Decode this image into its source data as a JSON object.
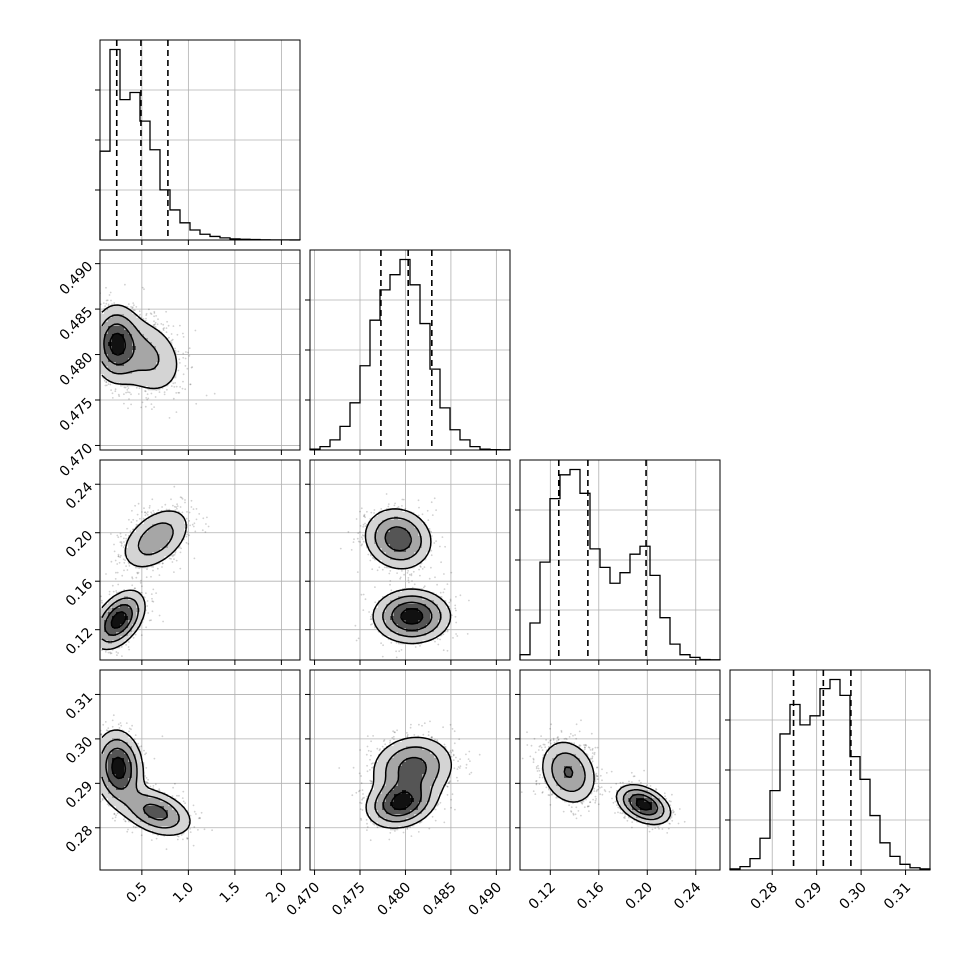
{
  "colors": {
    "points": "#000000",
    "histogram": "#000000",
    "grid": "#b0b0b0",
    "contour_fill_levels": [
      "#f2f2f2",
      "#d4d4d4",
      "#a6a6a6",
      "#555555",
      "#111111"
    ]
  },
  "chart_data": {
    "type": "corner",
    "grid": true,
    "parameters": [
      {
        "id": "p1",
        "range": [
          0.05,
          2.2
        ],
        "ticks": [
          0.5,
          1.0,
          1.5,
          2.0
        ],
        "tick_labels": [
          "0.5",
          "1.0",
          "1.5",
          "2.0"
        ],
        "quantiles": [
          0.23,
          0.49,
          0.78
        ],
        "histogram": {
          "edges": [
            0.05,
            0.1575,
            0.265,
            0.3725,
            0.48,
            0.5875,
            0.695,
            0.8025,
            0.91,
            1.0175,
            1.125,
            1.2325,
            1.34,
            1.4475,
            1.555,
            1.6625,
            1.77,
            1.8775,
            1.985,
            2.0925,
            2.2
          ],
          "counts": [
            62,
            133,
            98,
            103,
            83,
            63,
            35,
            21,
            12,
            7,
            4,
            2.5,
            1.5,
            0.8,
            0.5,
            0.3,
            0.2,
            0.1,
            0.1,
            0.05
          ]
        }
      },
      {
        "id": "p2",
        "range": [
          0.4695,
          0.4915
        ],
        "ticks": [
          0.47,
          0.475,
          0.48,
          0.485,
          0.49
        ],
        "tick_labels": [
          "0.470",
          "0.475",
          "0.480",
          "0.485",
          "0.490"
        ],
        "quantiles": [
          0.4773,
          0.4803,
          0.4829
        ],
        "histogram": {
          "edges": [
            0.4695,
            0.4706,
            0.4717,
            0.4728,
            0.4739,
            0.475,
            0.4761,
            0.4772,
            0.4783,
            0.4794,
            0.4805,
            0.4816,
            0.4827,
            0.4838,
            0.4849,
            0.486,
            0.4871,
            0.4882,
            0.4893,
            0.4904,
            0.4915
          ],
          "counts": [
            0.5,
            2,
            6,
            14,
            28,
            50,
            77,
            95,
            104,
            113,
            98,
            75,
            48,
            25,
            12,
            6,
            2,
            0.5,
            0.2,
            0.1
          ]
        }
      },
      {
        "id": "p3",
        "range": [
          0.095,
          0.26
        ],
        "ticks": [
          0.12,
          0.16,
          0.2,
          0.24
        ],
        "tick_labels": [
          "0.12",
          "0.16",
          "0.20",
          "0.24"
        ],
        "quantiles": [
          0.127,
          0.151,
          0.199
        ],
        "histogram": {
          "edges": [
            0.095,
            0.10325,
            0.1115,
            0.11975,
            0.128,
            0.13625,
            0.1445,
            0.15275,
            0.161,
            0.16925,
            0.1775,
            0.18575,
            0.194,
            0.20225,
            0.2105,
            0.21875,
            0.227,
            0.23525,
            0.2435,
            0.25175,
            0.26
          ],
          "counts": [
            2,
            14,
            37,
            61,
            70,
            72,
            63,
            42,
            35,
            29,
            33,
            40,
            43,
            32,
            16,
            6,
            2,
            1,
            0.2,
            0.1
          ]
        }
      },
      {
        "id": "p4",
        "range": [
          0.2705,
          0.3155
        ],
        "ticks": [
          0.28,
          0.29,
          0.3,
          0.31
        ],
        "tick_labels": [
          "0.28",
          "0.29",
          "0.30",
          "0.31"
        ],
        "quantiles": [
          0.2848,
          0.2915,
          0.2977
        ],
        "histogram": {
          "edges": [
            0.2705,
            0.27275,
            0.275,
            0.27725,
            0.2795,
            0.28175,
            0.284,
            0.28625,
            0.2885,
            0.29075,
            0.293,
            0.29525,
            0.2975,
            0.29975,
            0.302,
            0.30425,
            0.3065,
            0.30875,
            0.311,
            0.31325,
            0.3155
          ],
          "counts": [
            0.5,
            1.5,
            5,
            14,
            35,
            60,
            73,
            64,
            68,
            80,
            84,
            77,
            50,
            40,
            24,
            12,
            6,
            2.5,
            1,
            0.5
          ]
        }
      }
    ],
    "pairs": [
      {
        "id": "p2-vs-p1",
        "x_param": "p1",
        "y_param": "p2",
        "components": [
          {
            "x": 0.22,
            "y": 0.4812,
            "sx": 0.13,
            "sy": 0.0021,
            "rho": 0.0,
            "w": 0.55
          },
          {
            "x": 0.55,
            "y": 0.4798,
            "sx": 0.22,
            "sy": 0.0024,
            "rho": -0.25,
            "w": 0.45
          }
        ]
      },
      {
        "id": "p3-vs-p1",
        "x_param": "p1",
        "y_param": "p3",
        "components": [
          {
            "x": 0.25,
            "y": 0.128,
            "sx": 0.14,
            "sy": 0.012,
            "rho": 0.45,
            "w": 0.55
          },
          {
            "x": 0.65,
            "y": 0.195,
            "sx": 0.2,
            "sy": 0.014,
            "rho": 0.45,
            "w": 0.45
          }
        ]
      },
      {
        "id": "p4-vs-p1",
        "x_param": "p1",
        "y_param": "p4",
        "components": [
          {
            "x": 0.25,
            "y": 0.2935,
            "sx": 0.13,
            "sy": 0.0042,
            "rho": -0.1,
            "w": 0.6
          },
          {
            "x": 0.65,
            "y": 0.2835,
            "sx": 0.2,
            "sy": 0.0028,
            "rho": -0.4,
            "w": 0.4
          }
        ]
      },
      {
        "id": "p3-vs-p2",
        "x_param": "p2",
        "y_param": "p3",
        "components": [
          {
            "x": 0.4807,
            "y": 0.131,
            "sx": 0.0021,
            "sy": 0.011,
            "rho": 0.0,
            "w": 0.55
          },
          {
            "x": 0.4792,
            "y": 0.195,
            "sx": 0.0019,
            "sy": 0.013,
            "rho": -0.1,
            "w": 0.45
          }
        ]
      },
      {
        "id": "p4-vs-p2",
        "x_param": "p2",
        "y_param": "p4",
        "components": [
          {
            "x": 0.4795,
            "y": 0.2855,
            "sx": 0.0019,
            "sy": 0.0028,
            "rho": 0.2,
            "w": 0.45
          },
          {
            "x": 0.4808,
            "y": 0.2935,
            "sx": 0.0023,
            "sy": 0.0037,
            "rho": 0.1,
            "w": 0.55
          }
        ]
      },
      {
        "id": "p4-vs-p3",
        "x_param": "p3",
        "y_param": "p4",
        "components": [
          {
            "x": 0.135,
            "y": 0.2925,
            "sx": 0.012,
            "sy": 0.0038,
            "rho": -0.2,
            "w": 0.55
          },
          {
            "x": 0.197,
            "y": 0.2852,
            "sx": 0.011,
            "sy": 0.0022,
            "rho": -0.4,
            "w": 0.45
          }
        ]
      }
    ]
  }
}
